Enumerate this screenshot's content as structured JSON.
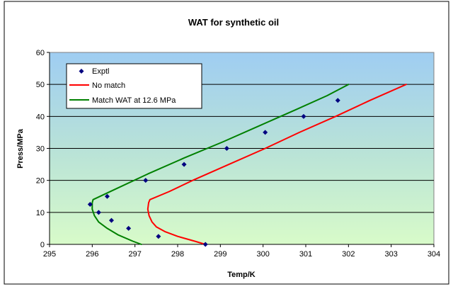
{
  "chart_data": {
    "type": "scatter",
    "title": "WAT for synthetic oil",
    "xlabel": "Temp/K",
    "ylabel": "Press/MPa",
    "xlim": [
      295,
      304
    ],
    "ylim": [
      0,
      60
    ],
    "x_ticks": [
      "295",
      "296",
      "297",
      "298",
      "299",
      "300",
      "301",
      "302",
      "303",
      "304"
    ],
    "y_ticks": [
      "0",
      "10",
      "20",
      "30",
      "40",
      "50",
      "60"
    ],
    "grid": "horizontal",
    "legend_position": "top-left",
    "plot_background": "vertical gradient from light blue (top) to light green (bottom)",
    "series": [
      {
        "name": "Exptl",
        "kind": "markers",
        "marker": "diamond",
        "color": "#000080",
        "points": [
          [
            298.65,
            0
          ],
          [
            297.55,
            2.5
          ],
          [
            296.85,
            5
          ],
          [
            296.45,
            7.5
          ],
          [
            296.15,
            10
          ],
          [
            295.95,
            12.5
          ],
          [
            296.35,
            15
          ],
          [
            297.25,
            20
          ],
          [
            298.15,
            25
          ],
          [
            299.15,
            30
          ],
          [
            300.05,
            35
          ],
          [
            300.95,
            40
          ],
          [
            301.75,
            45
          ]
        ]
      },
      {
        "name": "No match",
        "kind": "line",
        "color": "#ff0000",
        "points": [
          [
            298.65,
            0
          ],
          [
            298.4,
            1
          ],
          [
            298.0,
            2.5
          ],
          [
            297.7,
            4
          ],
          [
            297.5,
            5.5
          ],
          [
            297.4,
            7
          ],
          [
            297.33,
            9
          ],
          [
            297.3,
            11
          ],
          [
            297.32,
            13
          ],
          [
            297.35,
            14
          ],
          [
            297.8,
            16.5
          ],
          [
            298.35,
            20
          ],
          [
            299.2,
            25
          ],
          [
            300.05,
            30
          ],
          [
            300.85,
            35
          ],
          [
            301.7,
            40
          ],
          [
            302.5,
            45
          ],
          [
            303.35,
            50
          ]
        ]
      },
      {
        "name": "Match WAT at 12.6 MPa",
        "kind": "line",
        "color": "#008000",
        "points": [
          [
            297.15,
            0
          ],
          [
            296.95,
            1
          ],
          [
            296.6,
            3
          ],
          [
            296.35,
            5
          ],
          [
            296.15,
            7
          ],
          [
            296.05,
            9
          ],
          [
            296.0,
            11
          ],
          [
            296.0,
            13
          ],
          [
            296.02,
            14
          ],
          [
            296.5,
            17
          ],
          [
            297.3,
            22
          ],
          [
            298.15,
            27
          ],
          [
            299.05,
            32
          ],
          [
            299.9,
            37
          ],
          [
            300.75,
            42
          ],
          [
            301.5,
            46.5
          ],
          [
            302.0,
            50
          ]
        ]
      }
    ]
  }
}
